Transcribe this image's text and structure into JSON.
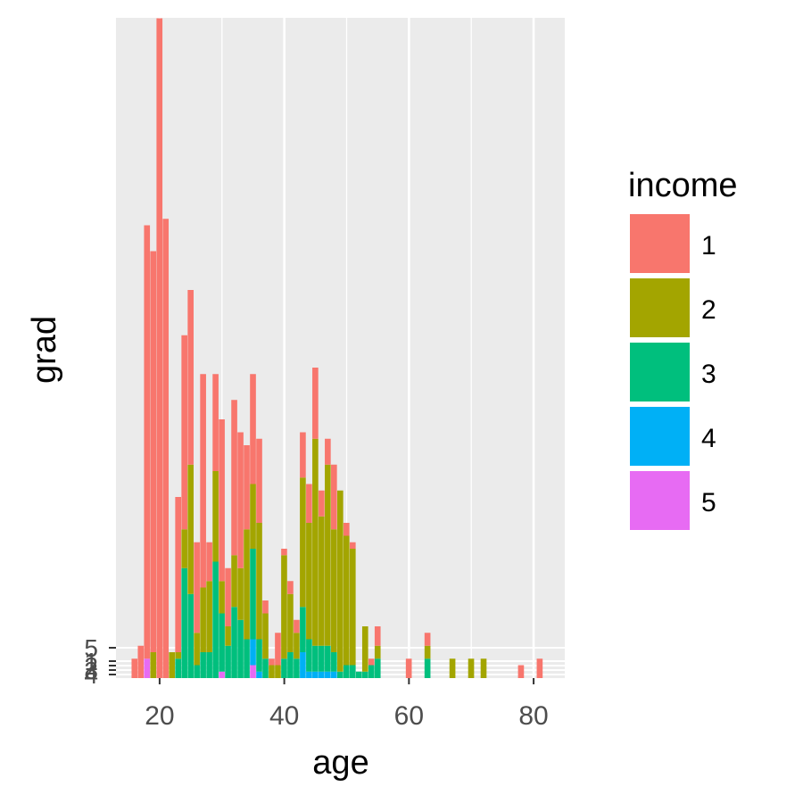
{
  "chart_data": {
    "type": "bar",
    "stacked": true,
    "title": "",
    "xlabel": "age",
    "ylabel": "grad",
    "xlim": [
      13,
      85
    ],
    "xticks": [
      20,
      40,
      60,
      80
    ],
    "yticks_labels": [
      "4",
      "3",
      "2",
      "1",
      "5"
    ],
    "grid": true,
    "legend": {
      "title": "income",
      "position": "right",
      "entries": [
        "1",
        "2",
        "3",
        "4",
        "5"
      ]
    },
    "colors": {
      "1": "#F8766D",
      "2": "#A3A500",
      "3": "#00BF7D",
      "4": "#00B0F6",
      "5": "#E76BF3",
      "panel": "#EBEBEB",
      "grid": "#FFFFFF"
    },
    "series": [
      {
        "name": "1",
        "values": [
          [
            16,
            3
          ],
          [
            17,
            5
          ],
          [
            18,
            67
          ],
          [
            19,
            62
          ],
          [
            20,
            102
          ],
          [
            21,
            71
          ],
          [
            22,
            0
          ],
          [
            23,
            24
          ],
          [
            24,
            30
          ],
          [
            25,
            27
          ],
          [
            26,
            14
          ],
          [
            27,
            33
          ],
          [
            28,
            6
          ],
          [
            29,
            15
          ],
          [
            30,
            25
          ],
          [
            31,
            9
          ],
          [
            32,
            24
          ],
          [
            33,
            21
          ],
          [
            34,
            13
          ],
          [
            35,
            17
          ],
          [
            36,
            13
          ],
          [
            37,
            2
          ],
          [
            38,
            1
          ],
          [
            39,
            5
          ],
          [
            40,
            1
          ],
          [
            41,
            2
          ],
          [
            42,
            2
          ],
          [
            43,
            7
          ],
          [
            44,
            6
          ],
          [
            45,
            11
          ],
          [
            46,
            4
          ],
          [
            47,
            4
          ],
          [
            48,
            10
          ],
          [
            49,
            0
          ],
          [
            50,
            2
          ],
          [
            51,
            1
          ],
          [
            52,
            0
          ],
          [
            53,
            0
          ],
          [
            54,
            1
          ],
          [
            55,
            3
          ],
          [
            60,
            3
          ],
          [
            63,
            2
          ],
          [
            78,
            2
          ],
          [
            81,
            3
          ]
        ]
      },
      {
        "name": "2",
        "values": [
          [
            17,
            0
          ],
          [
            18,
            0
          ],
          [
            19,
            4
          ],
          [
            20,
            0
          ],
          [
            21,
            0
          ],
          [
            22,
            4
          ],
          [
            23,
            1
          ],
          [
            24,
            6
          ],
          [
            25,
            20
          ],
          [
            26,
            5
          ],
          [
            27,
            10
          ],
          [
            28,
            11
          ],
          [
            29,
            14
          ],
          [
            30,
            5
          ],
          [
            31,
            3
          ],
          [
            32,
            8
          ],
          [
            33,
            8
          ],
          [
            34,
            17
          ],
          [
            35,
            10
          ],
          [
            36,
            18
          ],
          [
            37,
            7
          ],
          [
            38,
            2
          ],
          [
            39,
            2
          ],
          [
            40,
            16
          ],
          [
            41,
            9
          ],
          [
            42,
            4
          ],
          [
            43,
            20
          ],
          [
            44,
            18
          ],
          [
            45,
            32
          ],
          [
            46,
            20
          ],
          [
            47,
            28
          ],
          [
            48,
            19
          ],
          [
            49,
            28
          ],
          [
            50,
            20
          ],
          [
            51,
            18
          ],
          [
            52,
            0
          ],
          [
            53,
            7
          ],
          [
            55,
            2
          ],
          [
            63,
            2
          ],
          [
            67,
            3
          ],
          [
            70,
            3
          ],
          [
            72,
            3
          ]
        ]
      },
      {
        "name": "3",
        "values": [
          [
            22,
            0
          ],
          [
            23,
            3
          ],
          [
            24,
            17
          ],
          [
            25,
            13
          ],
          [
            26,
            2
          ],
          [
            27,
            4
          ],
          [
            28,
            4
          ],
          [
            29,
            18
          ],
          [
            30,
            9
          ],
          [
            31,
            5
          ],
          [
            32,
            11
          ],
          [
            33,
            9
          ],
          [
            34,
            6
          ],
          [
            35,
            14
          ],
          [
            36,
            5
          ],
          [
            37,
            3
          ],
          [
            38,
            0
          ],
          [
            39,
            0
          ],
          [
            40,
            3
          ],
          [
            41,
            4
          ],
          [
            42,
            3
          ],
          [
            43,
            7
          ],
          [
            44,
            5
          ],
          [
            45,
            4
          ],
          [
            46,
            4
          ],
          [
            47,
            4
          ],
          [
            48,
            3
          ],
          [
            49,
            1
          ],
          [
            50,
            2
          ],
          [
            51,
            2
          ],
          [
            52,
            1
          ],
          [
            53,
            1
          ],
          [
            54,
            2
          ],
          [
            55,
            3
          ],
          [
            63,
            3
          ]
        ]
      },
      {
        "name": "4",
        "values": [
          [
            35,
            4
          ],
          [
            36,
            1
          ],
          [
            43,
            4
          ],
          [
            44,
            1
          ],
          [
            45,
            1
          ],
          [
            46,
            1
          ],
          [
            47,
            1
          ],
          [
            48,
            1
          ]
        ]
      },
      {
        "name": "5",
        "values": [
          [
            18,
            3
          ],
          [
            30,
            1
          ],
          [
            35,
            2
          ]
        ]
      }
    ]
  }
}
